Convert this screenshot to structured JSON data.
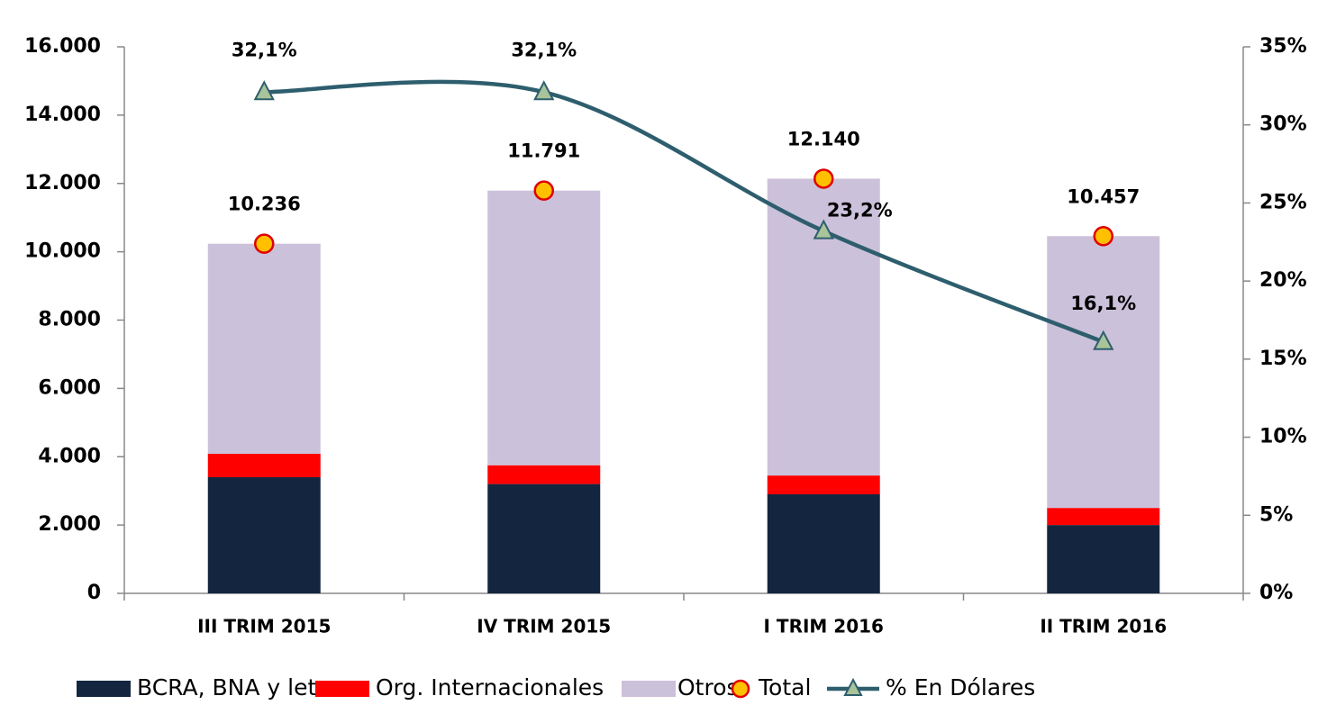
{
  "chart_data": {
    "type": "bar",
    "categories": [
      "III TRIM 2015",
      "IV TRIM 2015",
      "I TRIM 2016",
      "II TRIM 2016"
    ],
    "series": [
      {
        "name": "BCRA, BNA y letras",
        "type": "bar",
        "color": "#14263f",
        "values": [
          3400,
          3200,
          2900,
          2000
        ]
      },
      {
        "name": "Org. Internacionales",
        "type": "bar",
        "color": "#ff0000",
        "values": [
          685,
          550,
          550,
          500
        ]
      },
      {
        "name": "Otros",
        "type": "bar",
        "color": "#ccc1da",
        "values": [
          6151,
          8041,
          8690,
          7957
        ]
      },
      {
        "name": "Total",
        "type": "scatter",
        "color": "#ffc000",
        "values": [
          10236,
          11791,
          12140,
          10457
        ],
        "value_labels": [
          "10.236",
          "11.791",
          "12.140",
          "10.457"
        ]
      },
      {
        "name": "% En Dólares",
        "type": "line",
        "axis": "y2",
        "color": "#2e5e6e",
        "values": [
          32.1,
          32.1,
          23.2,
          16.1
        ],
        "value_labels": [
          "32,1%",
          "32,1%",
          "23,2%",
          "16,1%"
        ]
      }
    ],
    "ylim": [
      0,
      16000
    ],
    "yticks": [
      0,
      {
        "value": 2000,
        "label": "2.000"
      },
      {
        "value": 4000,
        "label": "4.000"
      },
      {
        "value": 6000,
        "label": "6.000"
      },
      {
        "value": 8000,
        "label": "8.000"
      },
      {
        "value": 10000,
        "label": "10.000"
      },
      {
        "value": 12000,
        "label": "12.000"
      },
      {
        "value": 14000,
        "label": "14.000"
      },
      {
        "value": 16000,
        "label": "16.000"
      }
    ],
    "y2lim": [
      0,
      35
    ],
    "y2ticks": [
      {
        "value": 0,
        "label": "0%"
      },
      {
        "value": 5,
        "label": "5%"
      },
      {
        "value": 10,
        "label": "10%"
      },
      {
        "value": 15,
        "label": "15%"
      },
      {
        "value": 20,
        "label": "20%"
      },
      {
        "value": 25,
        "label": "25%"
      },
      {
        "value": 30,
        "label": "30%"
      },
      {
        "value": 35,
        "label": "35%"
      }
    ],
    "legend": "bottom"
  }
}
